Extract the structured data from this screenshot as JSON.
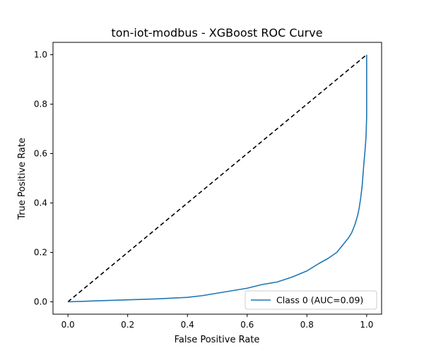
{
  "chart_data": {
    "type": "line",
    "title": "ton-iot-modbus - XGBoost ROC Curve",
    "xlabel": "False Positive Rate",
    "ylabel": "True Positive Rate",
    "xlim": [
      -0.05,
      1.05
    ],
    "ylim": [
      -0.05,
      1.05
    ],
    "xticks": [
      "0.0",
      "0.2",
      "0.4",
      "0.6",
      "0.8",
      "1.0"
    ],
    "yticks": [
      "0.0",
      "0.2",
      "0.4",
      "0.6",
      "0.8",
      "1.0"
    ],
    "grid": false,
    "legend_position": "lower-right",
    "series": [
      {
        "name": "Class 0 (AUC=0.09)",
        "color": "#1f77b4",
        "x": [
          0.0,
          0.05,
          0.1,
          0.2,
          0.3,
          0.4,
          0.45,
          0.5,
          0.55,
          0.6,
          0.65,
          0.7,
          0.75,
          0.8,
          0.84,
          0.87,
          0.9,
          0.92,
          0.94,
          0.95,
          0.96,
          0.97,
          0.975,
          0.98,
          0.985,
          0.99,
          0.995,
          0.998,
          1.0,
          1.0,
          1.0,
          1.0
        ],
        "y": [
          0.0,
          0.002,
          0.004,
          0.008,
          0.012,
          0.018,
          0.025,
          0.035,
          0.045,
          0.055,
          0.07,
          0.08,
          0.1,
          0.125,
          0.155,
          0.175,
          0.2,
          0.23,
          0.26,
          0.28,
          0.31,
          0.35,
          0.38,
          0.42,
          0.47,
          0.55,
          0.62,
          0.67,
          0.75,
          0.82,
          0.9,
          1.0
        ]
      },
      {
        "name": "",
        "color": "#000000",
        "dashed": true,
        "x": [
          0.0,
          1.0
        ],
        "y": [
          0.0,
          1.0
        ]
      }
    ]
  }
}
